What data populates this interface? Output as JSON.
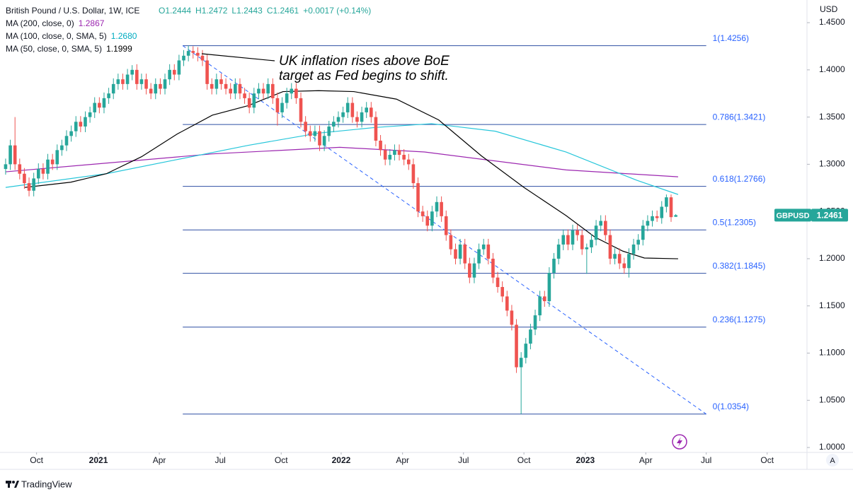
{
  "chart_data": {
    "type": "candlestick",
    "title": "British Pound / U.S. Dollar, 1W, ICE",
    "header_values": [
      "O1.2444",
      "H1.2472",
      "L1.2443",
      "C1.2461",
      "+0.0017 (+0.14%)"
    ],
    "y_axis_label": "USD",
    "up_color": "#26a69a",
    "down_color": "#ef5350",
    "xlim": [
      -1.2,
      171
    ],
    "ylim": [
      0.9948,
      1.474
    ],
    "yticks": [
      {
        "value": 1.0,
        "label": "1.0000"
      },
      {
        "value": 1.05,
        "label": "1.0500"
      },
      {
        "value": 1.1,
        "label": "1.1000"
      },
      {
        "value": 1.15,
        "label": "1.1500"
      },
      {
        "value": 1.2,
        "label": "1.2000"
      },
      {
        "value": 1.25,
        "label": "1.2500"
      },
      {
        "value": 1.3,
        "label": "1.3000"
      },
      {
        "value": 1.35,
        "label": "1.3500"
      },
      {
        "value": 1.4,
        "label": "1.4000"
      },
      {
        "value": 1.45,
        "label": "1.4500"
      }
    ],
    "xticks": [
      {
        "value": 6.6,
        "label": "Oct"
      },
      {
        "value": 19.8,
        "label": "2021"
      },
      {
        "value": 32.8,
        "label": "Apr"
      },
      {
        "value": 45.8,
        "label": "Jul"
      },
      {
        "value": 58.8,
        "label": "Oct"
      },
      {
        "value": 71.6,
        "label": "2022"
      },
      {
        "value": 84.7,
        "label": "Apr"
      },
      {
        "value": 97.7,
        "label": "Jul"
      },
      {
        "value": 110.6,
        "label": "Oct"
      },
      {
        "value": 123.7,
        "label": "2023"
      },
      {
        "value": 136.6,
        "label": "Apr"
      },
      {
        "value": 149.5,
        "label": "Jul"
      },
      {
        "value": 162.5,
        "label": "Oct"
      }
    ],
    "series": [
      {
        "name": "GBPUSD",
        "ohlc": [
          [
            1.295,
            1.306,
            1.289,
            1.3
          ],
          [
            1.3,
            1.326,
            1.294,
            1.32
          ],
          [
            1.32,
            1.35,
            1.294,
            1.3
          ],
          [
            1.3,
            1.306,
            1.284,
            1.29
          ],
          [
            1.29,
            1.296,
            1.274,
            1.28
          ],
          [
            1.28,
            1.286,
            1.266,
            1.272
          ],
          [
            1.272,
            1.291,
            1.266,
            1.285
          ],
          [
            1.285,
            1.301,
            1.279,
            1.295
          ],
          [
            1.295,
            1.301,
            1.284,
            1.29
          ],
          [
            1.29,
            1.311,
            1.284,
            1.305
          ],
          [
            1.305,
            1.311,
            1.294,
            1.3
          ],
          [
            1.3,
            1.321,
            1.294,
            1.315
          ],
          [
            1.315,
            1.326,
            1.309,
            1.32
          ],
          [
            1.32,
            1.336,
            1.314,
            1.33
          ],
          [
            1.33,
            1.341,
            1.324,
            1.335
          ],
          [
            1.335,
            1.351,
            1.329,
            1.345
          ],
          [
            1.345,
            1.351,
            1.334,
            1.34
          ],
          [
            1.34,
            1.356,
            1.334,
            1.35
          ],
          [
            1.35,
            1.361,
            1.344,
            1.355
          ],
          [
            1.355,
            1.371,
            1.349,
            1.365
          ],
          [
            1.365,
            1.371,
            1.354,
            1.36
          ],
          [
            1.36,
            1.376,
            1.354,
            1.37
          ],
          [
            1.37,
            1.381,
            1.364,
            1.375
          ],
          [
            1.375,
            1.391,
            1.369,
            1.385
          ],
          [
            1.385,
            1.396,
            1.379,
            1.39
          ],
          [
            1.39,
            1.396,
            1.379,
            1.385
          ],
          [
            1.385,
            1.401,
            1.379,
            1.395
          ],
          [
            1.395,
            1.405,
            1.389,
            1.4
          ],
          [
            1.4,
            1.406,
            1.379,
            1.385
          ],
          [
            1.385,
            1.396,
            1.379,
            1.39
          ],
          [
            1.39,
            1.396,
            1.374,
            1.38
          ],
          [
            1.38,
            1.386,
            1.369,
            1.375
          ],
          [
            1.375,
            1.391,
            1.369,
            1.385
          ],
          [
            1.385,
            1.391,
            1.374,
            1.38
          ],
          [
            1.38,
            1.396,
            1.374,
            1.39
          ],
          [
            1.39,
            1.406,
            1.384,
            1.4
          ],
          [
            1.4,
            1.406,
            1.389,
            1.395
          ],
          [
            1.395,
            1.416,
            1.389,
            1.41
          ],
          [
            1.41,
            1.421,
            1.404,
            1.415
          ],
          [
            1.415,
            1.4256,
            1.409,
            1.42
          ],
          [
            1.42,
            1.425,
            1.412,
            1.418
          ],
          [
            1.418,
            1.424,
            1.409,
            1.415
          ],
          [
            1.415,
            1.421,
            1.404,
            1.41
          ],
          [
            1.41,
            1.416,
            1.379,
            1.385
          ],
          [
            1.385,
            1.391,
            1.374,
            1.38
          ],
          [
            1.38,
            1.396,
            1.374,
            1.39
          ],
          [
            1.39,
            1.396,
            1.379,
            1.385
          ],
          [
            1.385,
            1.391,
            1.374,
            1.38
          ],
          [
            1.38,
            1.386,
            1.369,
            1.375
          ],
          [
            1.375,
            1.391,
            1.369,
            1.385
          ],
          [
            1.385,
            1.391,
            1.369,
            1.375
          ],
          [
            1.375,
            1.381,
            1.364,
            1.37
          ],
          [
            1.37,
            1.376,
            1.354,
            1.36
          ],
          [
            1.36,
            1.381,
            1.354,
            1.375
          ],
          [
            1.375,
            1.386,
            1.369,
            1.38
          ],
          [
            1.38,
            1.386,
            1.369,
            1.375
          ],
          [
            1.375,
            1.391,
            1.369,
            1.385
          ],
          [
            1.385,
            1.391,
            1.364,
            1.37
          ],
          [
            1.37,
            1.376,
            1.341,
            1.355
          ],
          [
            1.355,
            1.371,
            1.349,
            1.365
          ],
          [
            1.365,
            1.381,
            1.359,
            1.375
          ],
          [
            1.375,
            1.386,
            1.369,
            1.38
          ],
          [
            1.38,
            1.386,
            1.364,
            1.37
          ],
          [
            1.37,
            1.376,
            1.339,
            1.345
          ],
          [
            1.345,
            1.351,
            1.329,
            1.335
          ],
          [
            1.335,
            1.341,
            1.324,
            1.33
          ],
          [
            1.33,
            1.341,
            1.324,
            1.335
          ],
          [
            1.335,
            1.341,
            1.314,
            1.32
          ],
          [
            1.32,
            1.336,
            1.314,
            1.33
          ],
          [
            1.33,
            1.346,
            1.324,
            1.34
          ],
          [
            1.34,
            1.351,
            1.334,
            1.345
          ],
          [
            1.345,
            1.356,
            1.339,
            1.35
          ],
          [
            1.35,
            1.361,
            1.344,
            1.355
          ],
          [
            1.355,
            1.371,
            1.349,
            1.365
          ],
          [
            1.365,
            1.371,
            1.344,
            1.35
          ],
          [
            1.35,
            1.356,
            1.339,
            1.345
          ],
          [
            1.345,
            1.361,
            1.339,
            1.355
          ],
          [
            1.355,
            1.366,
            1.349,
            1.36
          ],
          [
            1.36,
            1.366,
            1.344,
            1.35
          ],
          [
            1.35,
            1.356,
            1.319,
            1.325
          ],
          [
            1.325,
            1.331,
            1.309,
            1.315
          ],
          [
            1.315,
            1.321,
            1.299,
            1.305
          ],
          [
            1.305,
            1.316,
            1.299,
            1.31
          ],
          [
            1.31,
            1.321,
            1.304,
            1.315
          ],
          [
            1.315,
            1.321,
            1.304,
            1.31
          ],
          [
            1.31,
            1.316,
            1.299,
            1.305
          ],
          [
            1.305,
            1.311,
            1.294,
            1.3
          ],
          [
            1.3,
            1.306,
            1.274,
            1.28
          ],
          [
            1.28,
            1.286,
            1.244,
            1.25
          ],
          [
            1.25,
            1.256,
            1.239,
            1.245
          ],
          [
            1.245,
            1.251,
            1.229,
            1.235
          ],
          [
            1.235,
            1.256,
            1.229,
            1.25
          ],
          [
            1.25,
            1.266,
            1.244,
            1.26
          ],
          [
            1.26,
            1.266,
            1.239,
            1.245
          ],
          [
            1.245,
            1.251,
            1.219,
            1.225
          ],
          [
            1.225,
            1.231,
            1.204,
            1.21
          ],
          [
            1.21,
            1.216,
            1.194,
            1.2
          ],
          [
            1.2,
            1.221,
            1.194,
            1.215
          ],
          [
            1.215,
            1.221,
            1.189,
            1.195
          ],
          [
            1.195,
            1.201,
            1.174,
            1.18
          ],
          [
            1.18,
            1.201,
            1.174,
            1.195
          ],
          [
            1.195,
            1.216,
            1.189,
            1.21
          ],
          [
            1.21,
            1.221,
            1.204,
            1.215
          ],
          [
            1.215,
            1.221,
            1.194,
            1.2
          ],
          [
            1.2,
            1.206,
            1.174,
            1.18
          ],
          [
            1.18,
            1.186,
            1.164,
            1.17
          ],
          [
            1.17,
            1.176,
            1.154,
            1.16
          ],
          [
            1.16,
            1.166,
            1.139,
            1.145
          ],
          [
            1.145,
            1.151,
            1.124,
            1.13
          ],
          [
            1.13,
            1.136,
            1.079,
            1.085
          ],
          [
            1.085,
            1.101,
            1.0354,
            1.095
          ],
          [
            1.095,
            1.116,
            1.089,
            1.11
          ],
          [
            1.11,
            1.131,
            1.104,
            1.125
          ],
          [
            1.125,
            1.146,
            1.119,
            1.14
          ],
          [
            1.14,
            1.166,
            1.134,
            1.16
          ],
          [
            1.16,
            1.166,
            1.149,
            1.155
          ],
          [
            1.155,
            1.191,
            1.149,
            1.185
          ],
          [
            1.185,
            1.206,
            1.179,
            1.2
          ],
          [
            1.2,
            1.221,
            1.194,
            1.215
          ],
          [
            1.215,
            1.231,
            1.209,
            1.225
          ],
          [
            1.225,
            1.231,
            1.209,
            1.215
          ],
          [
            1.215,
            1.236,
            1.209,
            1.23
          ],
          [
            1.23,
            1.236,
            1.219,
            1.225
          ],
          [
            1.225,
            1.231,
            1.204,
            1.21
          ],
          [
            1.21,
            1.216,
            1.184,
            1.212
          ],
          [
            1.212,
            1.226,
            1.206,
            1.22
          ],
          [
            1.22,
            1.241,
            1.214,
            1.235
          ],
          [
            1.235,
            1.246,
            1.229,
            1.24
          ],
          [
            1.24,
            1.246,
            1.219,
            1.225
          ],
          [
            1.225,
            1.231,
            1.194,
            1.2
          ],
          [
            1.2,
            1.211,
            1.194,
            1.205
          ],
          [
            1.205,
            1.211,
            1.189,
            1.195
          ],
          [
            1.195,
            1.201,
            1.184,
            1.19
          ],
          [
            1.19,
            1.211,
            1.18,
            1.205
          ],
          [
            1.205,
            1.221,
            1.199,
            1.215
          ],
          [
            1.215,
            1.226,
            1.209,
            1.22
          ],
          [
            1.22,
            1.241,
            1.214,
            1.235
          ],
          [
            1.235,
            1.246,
            1.229,
            1.24
          ],
          [
            1.24,
            1.251,
            1.234,
            1.245
          ],
          [
            1.245,
            1.251,
            1.239,
            1.243
          ],
          [
            1.243,
            1.261,
            1.237,
            1.255
          ],
          [
            1.255,
            1.268,
            1.249,
            1.265
          ],
          [
            1.265,
            1.268,
            1.239,
            1.244
          ],
          [
            1.2444,
            1.2472,
            1.2443,
            1.2461
          ]
        ]
      }
    ],
    "indicators": [
      {
        "name": "MA (200, close, 0)",
        "legend_value": "1.2867",
        "color": "#9c27b0",
        "x": [
          0,
          44.1,
          71.3,
          89.4,
          119.6,
          143.5
        ],
        "values": [
          1.292,
          1.311,
          1.318,
          1.313,
          1.294,
          1.2867
        ]
      },
      {
        "name": "MA (100, close, 0, SMA, 5)",
        "legend_value": "1.2680",
        "color": "#26c6da",
        "x": [
          0,
          21.5,
          36.6,
          51.7,
          66.8,
          78.9,
          90.9,
          104.5,
          119.6,
          134.7,
          143.5
        ],
        "values": [
          1.2755,
          1.29,
          1.305,
          1.32,
          1.333,
          1.339,
          1.343,
          1.335,
          1.313,
          1.283,
          1.268
        ]
      },
      {
        "name": "MA (50, close, 0, SMA, 5)",
        "legend_value": "1.1999",
        "color": "#000000",
        "x": [
          4.1,
          13.9,
          21.5,
          29,
          36.6,
          44.1,
          51.7,
          59.2,
          66.8,
          74.3,
          83.4,
          92.4,
          101.5,
          110.6,
          119.6,
          125.7,
          131.7,
          136.3,
          143.5
        ],
        "values": [
          1.2755,
          1.281,
          1.29,
          1.308,
          1.332,
          1.352,
          1.362,
          1.377,
          1.378,
          1.377,
          1.369,
          1.347,
          1.309,
          1.2755,
          1.2456,
          1.223,
          1.208,
          1.2007,
          1.1999
        ]
      }
    ],
    "fib_x": [
      37.8,
      149.5
    ],
    "fib_levels": [
      {
        "label": "1(1.4256)",
        "value": 1.4256
      },
      {
        "label": "0.786(1.3421)",
        "value": 1.3421
      },
      {
        "label": "0.618(1.2766)",
        "value": 1.2766
      },
      {
        "label": "0.5(1.2305)",
        "value": 1.2305
      },
      {
        "label": "0.382(1.1845)",
        "value": 1.1845
      },
      {
        "label": "0.236(1.1275)",
        "value": 1.1275
      },
      {
        "label": "0(1.0354)",
        "value": 1.0354
      }
    ],
    "annotation": [
      "UK inflation rises above BoE",
      "target as Fed begins to shift."
    ],
    "price_label": {
      "symbol": "GBPUSD",
      "value": "1.2461"
    },
    "source": "TradingView"
  }
}
